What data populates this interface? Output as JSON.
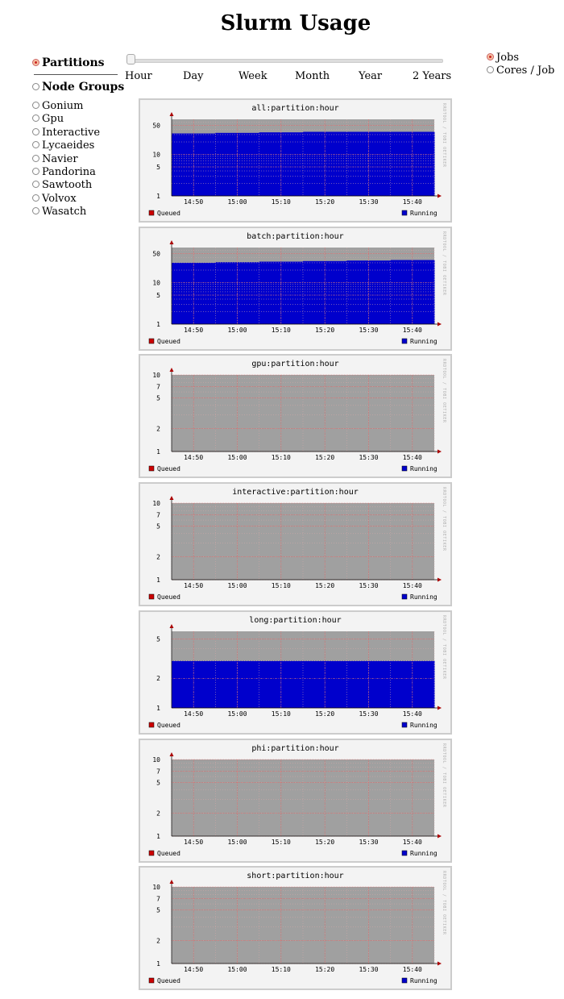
{
  "page": {
    "title": "Slurm Usage"
  },
  "sidebar": {
    "partitions_label": "Partitions",
    "node_groups_label": "Node Groups",
    "node_groups": [
      "Gonium",
      "Gpu",
      "Interactive",
      "Lycaeides",
      "Navier",
      "Pandorina",
      "Sawtooth",
      "Volvox",
      "Wasatch"
    ]
  },
  "timeline": {
    "labels": [
      "Hour",
      "Day",
      "Week",
      "Month",
      "Year",
      "2 Years"
    ],
    "selected": "Hour"
  },
  "metric": {
    "jobs_label": "Jobs",
    "cores_label": "Cores / Job"
  },
  "colors": {
    "queued": "#cc0000",
    "running": "#0000cc",
    "background_area": "#a0a0a0"
  },
  "watermark": "RRDTOOL / TOBI OETIKER",
  "legend": {
    "queued": "Queued",
    "running": "Running"
  },
  "chart_data": [
    {
      "type": "area",
      "title": "all:partition:hour",
      "x": [
        "14:50",
        "15:00",
        "15:10",
        "15:20",
        "15:30",
        "15:40"
      ],
      "yscale": "log",
      "ylim": [
        1,
        70
      ],
      "yticks": [
        1,
        5,
        10,
        50
      ],
      "series": [
        {
          "name": "Running",
          "values": [
            32,
            33,
            34,
            35,
            35,
            35
          ]
        },
        {
          "name": "Queued",
          "values": [
            0,
            0,
            0,
            0,
            0,
            0
          ]
        }
      ]
    },
    {
      "type": "area",
      "title": "batch:partition:hour",
      "x": [
        "14:50",
        "15:00",
        "15:10",
        "15:20",
        "15:30",
        "15:40"
      ],
      "yscale": "log",
      "ylim": [
        1,
        70
      ],
      "yticks": [
        1,
        5,
        10,
        50
      ],
      "series": [
        {
          "name": "Running",
          "values": [
            30,
            31,
            32,
            33,
            34,
            35
          ]
        },
        {
          "name": "Queued",
          "values": [
            0,
            0,
            0,
            0,
            0,
            0
          ]
        }
      ]
    },
    {
      "type": "area",
      "title": "gpu:partition:hour",
      "x": [
        "14:50",
        "15:00",
        "15:10",
        "15:20",
        "15:30",
        "15:40"
      ],
      "yscale": "log",
      "ylim": [
        1,
        10
      ],
      "yticks": [
        1,
        2,
        5,
        7,
        10
      ],
      "series": [
        {
          "name": "Running",
          "values": [
            0,
            0,
            0,
            0,
            0,
            0
          ]
        },
        {
          "name": "Queued",
          "values": [
            0,
            0,
            0,
            0,
            0,
            0
          ]
        }
      ]
    },
    {
      "type": "area",
      "title": "interactive:partition:hour",
      "x": [
        "14:50",
        "15:00",
        "15:10",
        "15:20",
        "15:30",
        "15:40"
      ],
      "yscale": "log",
      "ylim": [
        1,
        10
      ],
      "yticks": [
        1,
        2,
        5,
        7,
        10
      ],
      "series": [
        {
          "name": "Running",
          "values": [
            0,
            0,
            0,
            0,
            0,
            0
          ]
        },
        {
          "name": "Queued",
          "values": [
            0,
            0,
            0,
            0,
            0,
            0
          ]
        }
      ]
    },
    {
      "type": "area",
      "title": "long:partition:hour",
      "x": [
        "14:50",
        "15:00",
        "15:10",
        "15:20",
        "15:30",
        "15:40"
      ],
      "yscale": "log",
      "ylim": [
        1,
        6
      ],
      "yticks": [
        1,
        2,
        5
      ],
      "series": [
        {
          "name": "Running",
          "values": [
            3,
            3,
            3,
            3,
            3,
            3
          ]
        },
        {
          "name": "Queued",
          "values": [
            0,
            0,
            0,
            0,
            0,
            0
          ]
        }
      ]
    },
    {
      "type": "area",
      "title": "phi:partition:hour",
      "x": [
        "14:50",
        "15:00",
        "15:10",
        "15:20",
        "15:30",
        "15:40"
      ],
      "yscale": "log",
      "ylim": [
        1,
        10
      ],
      "yticks": [
        1,
        2,
        5,
        7,
        10
      ],
      "series": [
        {
          "name": "Running",
          "values": [
            0,
            0,
            0,
            0,
            0,
            0
          ]
        },
        {
          "name": "Queued",
          "values": [
            0,
            0,
            0,
            0,
            0,
            0
          ]
        }
      ]
    },
    {
      "type": "area",
      "title": "short:partition:hour",
      "x": [
        "14:50",
        "15:00",
        "15:10",
        "15:20",
        "15:30",
        "15:40"
      ],
      "yscale": "log",
      "ylim": [
        1,
        10
      ],
      "yticks": [
        1,
        2,
        5,
        7,
        10
      ],
      "series": [
        {
          "name": "Running",
          "values": [
            0,
            0,
            0,
            0,
            0,
            0
          ]
        },
        {
          "name": "Queued",
          "values": [
            0,
            0,
            0,
            0,
            0,
            0
          ]
        }
      ]
    }
  ]
}
